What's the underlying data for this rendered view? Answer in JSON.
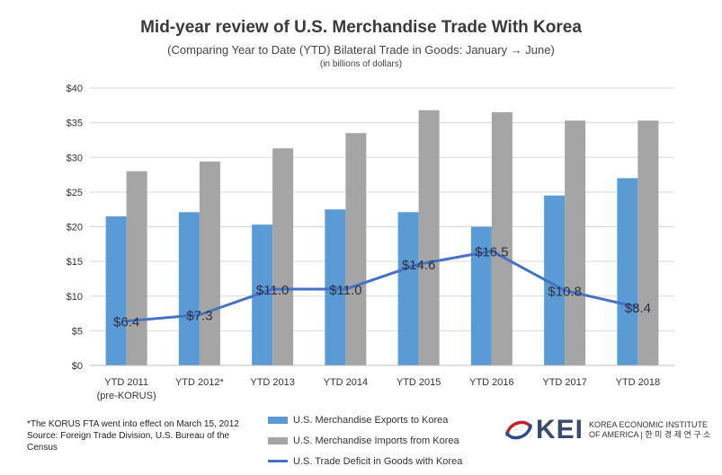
{
  "chart_data": {
    "type": "bar",
    "title": "Mid-year review of U.S. Merchandise Trade With Korea",
    "subtitle": "(Comparing Year to Date (YTD) Bilateral Trade in Goods:  January → June)",
    "unit_note": "(in billions of dollars)",
    "categories": [
      "YTD 2011",
      "YTD 2012*",
      "YTD 2013",
      "YTD 2014",
      "YTD 2015",
      "YTD 2016",
      "YTD 2017",
      "YTD 2018"
    ],
    "category_sublabels": [
      "(pre-KORUS)",
      "",
      "",
      "",
      "",
      "",
      "",
      ""
    ],
    "ylim": [
      0,
      40
    ],
    "yticks": [
      0,
      5,
      10,
      15,
      20,
      25,
      30,
      35,
      40
    ],
    "ytick_labels": [
      "$0",
      "$5",
      "$10",
      "$15",
      "$20",
      "$25",
      "$30",
      "$35",
      "$40"
    ],
    "grid": true,
    "legend_position": "bottom",
    "series": [
      {
        "name": "U.S. Merchandise Exports to Korea",
        "kind": "bar",
        "color": "#5b9bd5",
        "values": [
          21.5,
          22.1,
          20.3,
          22.5,
          22.1,
          20.0,
          24.5,
          27.0
        ]
      },
      {
        "name": "U.S. Merchandise Imports from Korea",
        "kind": "bar",
        "color": "#a5a5a5",
        "values": [
          28.0,
          29.4,
          31.3,
          33.5,
          36.8,
          36.5,
          35.3,
          35.3
        ]
      },
      {
        "name": "U.S. Trade Deficit in Goods with Korea",
        "kind": "line",
        "color": "#4472c4",
        "values": [
          6.4,
          7.3,
          11.0,
          11.0,
          14.6,
          16.5,
          10.8,
          8.4
        ],
        "labels": [
          "$6.4",
          "$7.3",
          "$11.0",
          "$11.0",
          "$14.6",
          "$16.5",
          "$10.8",
          "$8.4"
        ]
      }
    ]
  },
  "footnote": {
    "line1": "*The KORUS FTA went into effect on March 15, 2012",
    "line2": "Source: Foreign Trade Division, U.S. Bureau of the Census"
  },
  "logo": {
    "mark": "KEI",
    "text_line1": "KOREA ECONOMIC INSTITUTE",
    "text_line2": "OF AMERICA | 한 미 경 제 연 구 소",
    "colors": {
      "swirl_red": "#c0242a",
      "swirl_blue": "#2d4a8a",
      "mark": "#3a4a6b"
    }
  }
}
